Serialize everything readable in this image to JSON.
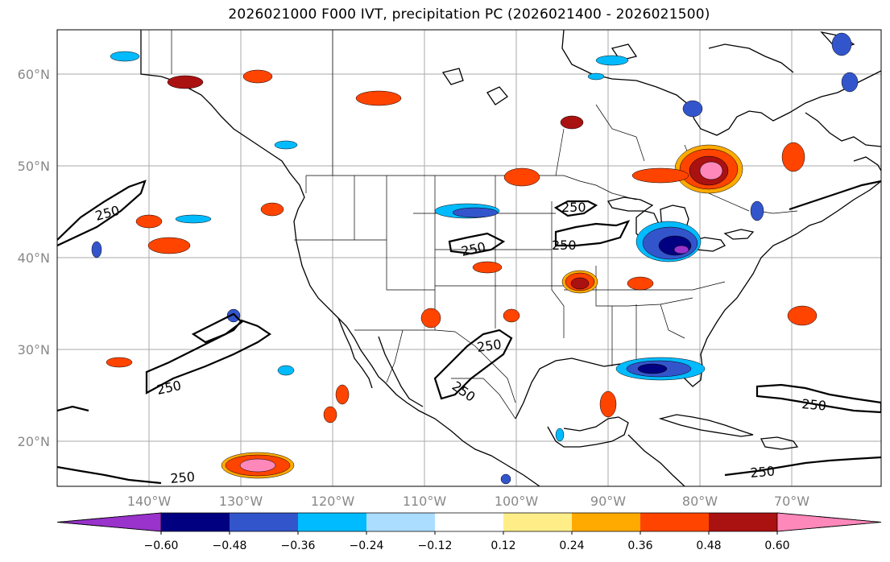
{
  "title": "2026021000 F000 IVT, precipitation PC (2026021400 - 2026021500)",
  "latitudes": [
    {
      "label": "60°N",
      "lat": 60
    },
    {
      "label": "50°N",
      "lat": 50
    },
    {
      "label": "40°N",
      "lat": 40
    },
    {
      "label": "30°N",
      "lat": 30
    },
    {
      "label": "20°N",
      "lat": 20
    }
  ],
  "longitudes": [
    {
      "label": "140°W",
      "lon": -140
    },
    {
      "label": "130°W",
      "lon": -130
    },
    {
      "label": "120°W",
      "lon": -120
    },
    {
      "label": "110°W",
      "lon": -110
    },
    {
      "label": "100°W",
      "lon": -100
    },
    {
      "label": "90°W",
      "lon": -90
    },
    {
      "label": "80°W",
      "lon": -80
    },
    {
      "label": "70°W",
      "lon": -70
    }
  ],
  "contour_labels": [
    "250",
    "250",
    "250",
    "250",
    "250",
    "250",
    "250",
    "250",
    "250",
    "250"
  ],
  "colorbar": {
    "colors": [
      "#9933cc",
      "#000080",
      "#3355cc",
      "#00bbff",
      "#aaddff",
      "#ffffff",
      "#ffee88",
      "#ffaa00",
      "#ff4400",
      "#aa1111",
      "#ff88bb"
    ],
    "ticks": [
      "−0.60",
      "−0.48",
      "−0.36",
      "−0.24",
      "−0.12",
      "0.12",
      "0.24",
      "0.36",
      "0.48",
      "0.60"
    ]
  }
}
